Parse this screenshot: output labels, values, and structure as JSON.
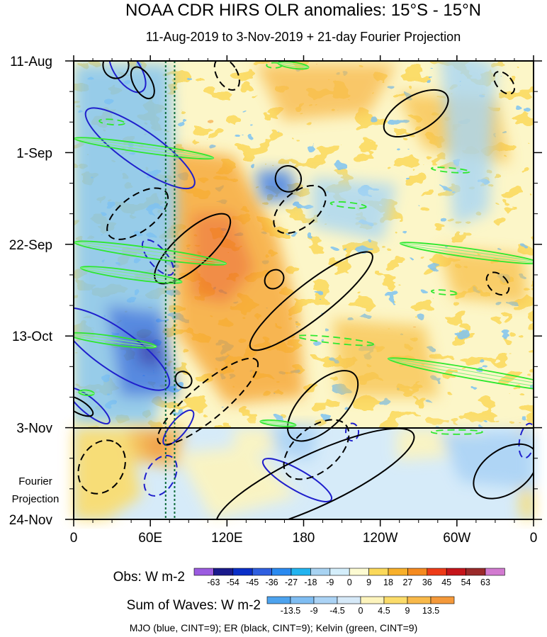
{
  "chart_data": {
    "type": "heatmap",
    "title": "NOAA CDR HIRS OLR anomalies: 15°S - 15°N",
    "subtitle": "11-Aug-2019 to 3-Nov-2019 + 21-day Fourier Projection",
    "x_ticks": [
      "0",
      "60E",
      "120E",
      "180",
      "120W",
      "60W",
      "0"
    ],
    "x_tick_lon": [
      0,
      60,
      120,
      180,
      240,
      300,
      360
    ],
    "xlim": [
      0,
      360
    ],
    "y_ticks": [
      "11-Aug",
      "1-Sep",
      "22-Sep",
      "13-Oct",
      "3-Nov",
      "24-Nov"
    ],
    "y_tick_day": [
      0,
      21,
      42,
      63,
      84,
      105
    ],
    "ylim_days": [
      0,
      105
    ],
    "projection_start_day": 84,
    "projection_label_line1": "Fourier",
    "projection_label_line2": "Projection",
    "dotted_lines_lon": [
      72,
      79
    ],
    "obs_colorbar": {
      "label": "Obs: W m-2",
      "ticks": [
        "-63",
        "-54",
        "-45",
        "-36",
        "-27",
        "-18",
        "-9",
        "0",
        "9",
        "18",
        "27",
        "36",
        "45",
        "54",
        "63"
      ],
      "colors": [
        "#9b5be0",
        "#1a1a8c",
        "#0a2fc8",
        "#2f5fe0",
        "#2a8af0",
        "#22b4f0",
        "#a8d3f2",
        "#d4eefb",
        "#fdfbd2",
        "#fbd95a",
        "#f8b02a",
        "#f58a1f",
        "#ee3b17",
        "#c5141a",
        "#9a2a2a",
        "#d27ad0"
      ]
    },
    "sow_colorbar": {
      "label": "Sum of Waves: W m-2",
      "ticks": [
        "-13.5",
        "-9",
        "-4.5",
        "0",
        "4.5",
        "9",
        "13.5"
      ],
      "colors": [
        "#4da3ee",
        "#7fbdf2",
        "#abd3f5",
        "#d6e9f8",
        "#fdf4bd",
        "#fbdc6a",
        "#f8b94a",
        "#f4993a"
      ]
    },
    "footnote": "MJO (blue, CINT=9); ER (black, CINT=9); Kelvin (green, CINT=9)",
    "series": [
      {
        "name": "MJO",
        "color": "#1f1fcc",
        "ellipses": [
          {
            "lon": 42,
            "day": 2,
            "a_lon": 10,
            "b_day": 6,
            "angle": -35,
            "dashed": false
          },
          {
            "lon": 52,
            "day": 20,
            "a_lon": 14,
            "b_day": 15,
            "angle": -55,
            "dashed": false
          },
          {
            "lon": 32,
            "day": 66,
            "a_lon": 16,
            "b_day": 15,
            "angle": -55,
            "dashed": false
          },
          {
            "lon": 12,
            "day": 79,
            "a_lon": 6,
            "b_day": 6,
            "angle": -50,
            "dashed": false
          },
          {
            "lon": 82,
            "day": 84,
            "a_lon": 6,
            "b_day": 5,
            "angle": 40,
            "dashed": false
          },
          {
            "lon": 175,
            "day": 96,
            "a_lon": 8,
            "b_day": 9,
            "angle": -60,
            "dashed": false
          },
          {
            "lon": 355,
            "day": 87,
            "a_lon": 6,
            "b_day": 4,
            "angle": 10,
            "dashed": true
          },
          {
            "lon": 68,
            "day": 95,
            "a_lon": 11,
            "b_day": 5,
            "angle": 30,
            "dashed": true
          },
          {
            "lon": 218,
            "day": 85,
            "a_lon": 5,
            "b_day": 2,
            "angle": 0,
            "dashed": true
          },
          {
            "lon": 66,
            "day": 45,
            "a_lon": 7,
            "b_day": 5,
            "angle": -40,
            "dashed": true
          }
        ]
      },
      {
        "name": "ER",
        "color": "#000000",
        "ellipses": [
          {
            "lon": 33,
            "day": 1,
            "a_lon": 10,
            "b_day": 3,
            "angle": -20,
            "dashed": false
          },
          {
            "lon": 54,
            "day": 5,
            "a_lon": 7,
            "b_day": 4,
            "angle": -30,
            "dashed": false
          },
          {
            "lon": 120,
            "day": 3,
            "a_lon": 8,
            "b_day": 4,
            "angle": -30,
            "dashed": true
          },
          {
            "lon": 268,
            "day": 12,
            "a_lon": 28,
            "b_day": 4,
            "angle": -30,
            "dashed": false
          },
          {
            "lon": 337,
            "day": 5,
            "a_lon": 6,
            "b_day": 3,
            "angle": -40,
            "dashed": true
          },
          {
            "lon": 50,
            "day": 35,
            "a_lon": 28,
            "b_day": 4,
            "angle": -37,
            "dashed": true
          },
          {
            "lon": 168,
            "day": 27,
            "a_lon": 10,
            "b_day": 3,
            "angle": -35,
            "dashed": false
          },
          {
            "lon": 93,
            "day": 43,
            "a_lon": 38,
            "b_day": 4,
            "angle": -42,
            "dashed": false
          },
          {
            "lon": 177,
            "day": 34,
            "a_lon": 24,
            "b_day": 4,
            "angle": -40,
            "dashed": true
          },
          {
            "lon": 186,
            "day": 55,
            "a_lon": 60,
            "b_day": 4,
            "angle": -38,
            "dashed": false
          },
          {
            "lon": 157,
            "day": 50,
            "a_lon": 8,
            "b_day": 2,
            "angle": -45,
            "dashed": false
          },
          {
            "lon": 332,
            "day": 51,
            "a_lon": 7,
            "b_day": 3,
            "angle": -45,
            "dashed": true
          },
          {
            "lon": 105,
            "day": 78,
            "a_lon": 50,
            "b_day": 4,
            "angle": -40,
            "dashed": true
          },
          {
            "lon": 86,
            "day": 73,
            "a_lon": 6,
            "b_day": 2,
            "angle": -45,
            "dashed": false
          },
          {
            "lon": 195,
            "day": 79,
            "a_lon": 35,
            "b_day": 5,
            "angle": -45,
            "dashed": false
          },
          {
            "lon": 190,
            "day": 89,
            "a_lon": 30,
            "b_day": 5,
            "angle": -40,
            "dashed": true
          },
          {
            "lon": 189,
            "day": 96,
            "a_lon": 85,
            "b_day": 6,
            "angle": -25,
            "dashed": false
          },
          {
            "lon": 22,
            "day": 93,
            "a_lon": 22,
            "b_day": 5,
            "angle": -60,
            "dashed": true
          },
          {
            "lon": 338,
            "day": 94,
            "a_lon": 28,
            "b_day": 5,
            "angle": -35,
            "dashed": false
          },
          {
            "lon": 3,
            "day": 79,
            "a_lon": 5,
            "b_day": 4,
            "angle": -60,
            "dashed": false
          }
        ]
      },
      {
        "name": "Kelvin",
        "color": "#2ee82e",
        "ellipses": [
          {
            "lon": 172,
            "day": 1,
            "a_lon": 12,
            "b_day": 0.7,
            "angle": 8,
            "dashed": false
          },
          {
            "lon": 157,
            "day": 1,
            "a_lon": 6,
            "b_day": 0.6,
            "angle": 0,
            "dashed": true
          },
          {
            "lon": 30,
            "day": 14,
            "a_lon": 10,
            "b_day": 0.6,
            "angle": 5,
            "dashed": true
          },
          {
            "lon": 55,
            "day": 20,
            "a_lon": 55,
            "b_day": 1,
            "angle": 8,
            "dashed": false
          },
          {
            "lon": 60,
            "day": 44,
            "a_lon": 60,
            "b_day": 1.2,
            "angle": 8,
            "dashed": false
          },
          {
            "lon": 45,
            "day": 49,
            "a_lon": 40,
            "b_day": 1,
            "angle": 8,
            "dashed": false
          },
          {
            "lon": 30,
            "day": 64,
            "a_lon": 35,
            "b_day": 1,
            "angle": 8,
            "dashed": false
          },
          {
            "lon": 310,
            "day": 44,
            "a_lon": 55,
            "b_day": 1,
            "angle": 8,
            "dashed": false
          },
          {
            "lon": 320,
            "day": 72,
            "a_lon": 75,
            "b_day": 1.2,
            "angle": 10,
            "dashed": false
          },
          {
            "lon": 205,
            "day": 64,
            "a_lon": 30,
            "b_day": 0.7,
            "angle": 6,
            "dashed": true
          },
          {
            "lon": 295,
            "day": 25,
            "a_lon": 15,
            "b_day": 0.5,
            "angle": 5,
            "dashed": true
          },
          {
            "lon": 215,
            "day": 33,
            "a_lon": 14,
            "b_day": 0.6,
            "angle": 6,
            "dashed": true
          },
          {
            "lon": 290,
            "day": 53,
            "a_lon": 10,
            "b_day": 0.5,
            "angle": 5,
            "dashed": true
          },
          {
            "lon": 160,
            "day": 83,
            "a_lon": 14,
            "b_day": 0.6,
            "angle": 6,
            "dashed": false
          },
          {
            "lon": 300,
            "day": 85,
            "a_lon": 20,
            "b_day": 0.5,
            "angle": 0,
            "dashed": true
          },
          {
            "lon": 10,
            "day": 76,
            "a_lon": 6,
            "b_day": 0.6,
            "angle": 6,
            "dashed": false
          }
        ]
      }
    ]
  }
}
